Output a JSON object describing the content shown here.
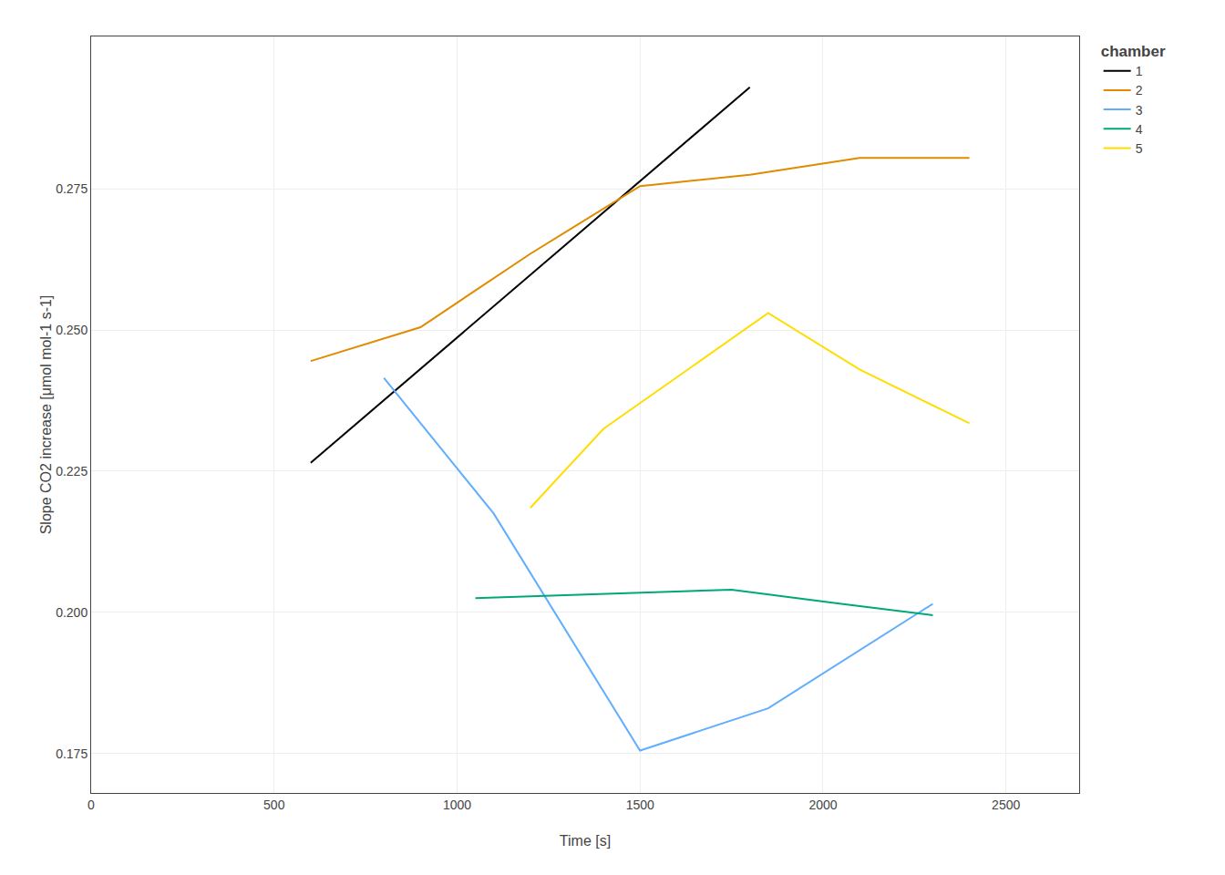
{
  "chart_data": {
    "type": "line",
    "xlabel": "Time [s]",
    "ylabel": "Slope CO2 increase [μmol mol-1 s-1]",
    "legend_title": "chamber",
    "series": [
      {
        "name": "1",
        "color": "#000000",
        "x": [
          600,
          1800
        ],
        "values": [
          0.2265,
          0.293
        ]
      },
      {
        "name": "2",
        "color": "#E08B00",
        "x": [
          600,
          900,
          1200,
          1500,
          1800,
          2100,
          2400
        ],
        "values": [
          0.2445,
          0.2505,
          0.2635,
          0.2755,
          0.2775,
          0.2805,
          0.2805
        ]
      },
      {
        "name": "3",
        "color": "#61AEFF",
        "x": [
          800,
          1100,
          1500,
          1850,
          2300
        ],
        "values": [
          0.2415,
          0.2175,
          0.1755,
          0.183,
          0.2015
        ]
      },
      {
        "name": "4",
        "color": "#00A878",
        "x": [
          1050,
          1300,
          1750,
          2050,
          2300
        ],
        "values": [
          0.2025,
          0.203,
          0.204,
          0.2015,
          0.1995
        ]
      },
      {
        "name": "5",
        "color": "#FFDD00",
        "x": [
          1200,
          1400,
          1850,
          2100,
          2400
        ],
        "values": [
          0.2185,
          0.2325,
          0.253,
          0.243,
          0.2335
        ]
      }
    ],
    "xlim": [
      0,
      2700
    ],
    "ylim": [
      0.168,
      0.302
    ],
    "xticks": [
      0,
      500,
      1000,
      1500,
      2000,
      2500
    ],
    "yticks": [
      0.175,
      {
        "value": 0.2,
        "label": "0.200"
      },
      0.225,
      {
        "value": 0.25,
        "label": "0.250"
      },
      0.275
    ],
    "grid": true,
    "legend": "right"
  }
}
